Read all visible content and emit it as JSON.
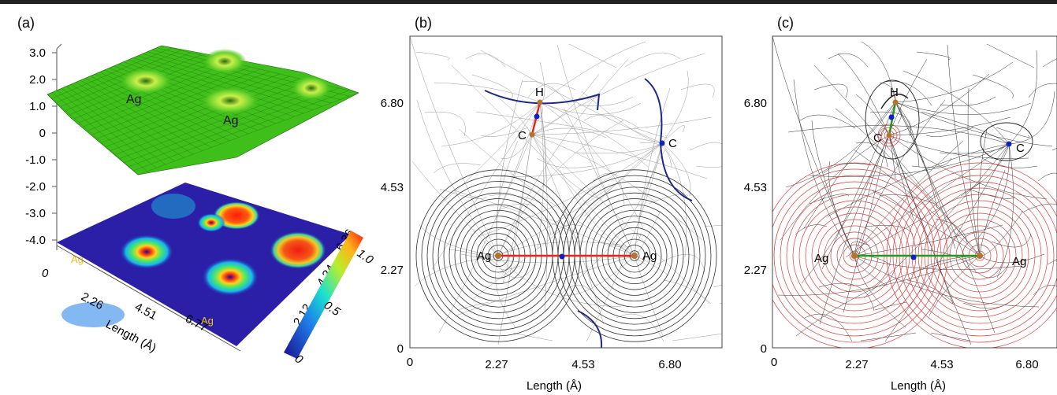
{
  "panels": {
    "a": {
      "label": "(a)",
      "z_ticks": [
        "3.0",
        "2.0",
        "1.0",
        "0",
        "-1.0",
        "-2.0",
        "-3.0",
        "-4.0"
      ],
      "x_ticks": [
        "0",
        "2.26",
        "4.51",
        "6.77"
      ],
      "y_ticks": [
        "2.12",
        "4.24",
        "6.36"
      ],
      "x_axis_label": "Length (Å)",
      "colorbar_ticks": [
        "0",
        "0.5",
        "1.0"
      ],
      "surface_atom_labels": [
        "Ag",
        "Ag"
      ],
      "map_atom_labels": [
        "Ag",
        "Ag"
      ],
      "colors": {
        "surface": "#3fbf1a",
        "map_bg": "#2b1fa8"
      }
    },
    "b": {
      "label": "(b)",
      "y_ticks": [
        "6.80",
        "4.53",
        "2.27",
        "0"
      ],
      "x_ticks": [
        "0",
        "2.27",
        "4.53",
        "6.80"
      ],
      "x_axis_label": "Length (Å)",
      "atoms": [
        "H",
        "C",
        "C",
        "Ag",
        "Ag"
      ],
      "colors": {
        "bond": "#e8231a",
        "critical_point": "#1020c8",
        "atom": "#b8722c",
        "path": "#1b2a8a"
      }
    },
    "c": {
      "label": "(c)",
      "y_ticks": [
        "6.80",
        "4.53",
        "2.27",
        "0"
      ],
      "x_ticks": [
        "0",
        "2.27",
        "4.53",
        "6.80"
      ],
      "x_axis_label": "Length (Å)",
      "atoms": [
        "H",
        "C",
        "C",
        "Ag",
        "Ag"
      ],
      "colors": {
        "bond": "#1f9a1a",
        "critical_point": "#1020c8",
        "atom": "#b8722c",
        "contour": "#e03a3a"
      }
    }
  }
}
